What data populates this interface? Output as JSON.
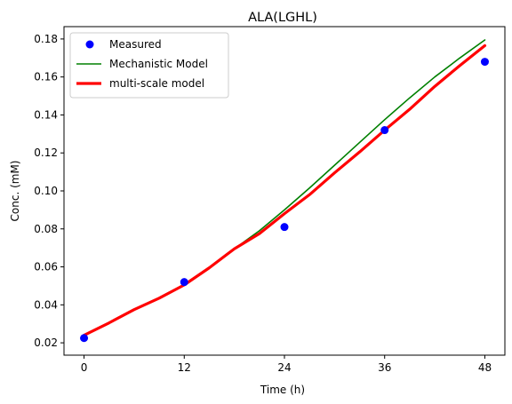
{
  "chart_data": {
    "type": "line",
    "title": "ALA(LGHL)",
    "xlabel": "Time (h)",
    "ylabel": "Conc. (mM)",
    "xlim": [
      -2.4,
      50.4
    ],
    "ylim": [
      0.0135,
      0.1865
    ],
    "xticks": [
      0,
      12,
      24,
      36,
      48
    ],
    "xtick_labels": [
      "0",
      "12",
      "24",
      "36",
      "48"
    ],
    "yticks": [
      0.02,
      0.04,
      0.06,
      0.08,
      0.1,
      0.12,
      0.14,
      0.16,
      0.18
    ],
    "ytick_labels": [
      "0.02",
      "0.04",
      "0.06",
      "0.08",
      "0.10",
      "0.12",
      "0.14",
      "0.16",
      "0.18"
    ],
    "grid": false,
    "legend_position": "top-left",
    "series": [
      {
        "name": "Measured",
        "kind": "marker",
        "color": "#0000ff",
        "x": [
          0,
          12,
          24,
          36,
          48
        ],
        "y": [
          0.0225,
          0.052,
          0.081,
          0.132,
          0.168
        ]
      },
      {
        "name": "Mechanistic Model",
        "kind": "line",
        "color": "#008000",
        "x": [
          0,
          3,
          6,
          9,
          12,
          15,
          18,
          21,
          24,
          27,
          30,
          33,
          36,
          39,
          42,
          45,
          48
        ],
        "y": [
          0.024,
          0.0305,
          0.0375,
          0.0435,
          0.0505,
          0.0595,
          0.0695,
          0.079,
          0.09,
          0.1015,
          0.1135,
          0.1255,
          0.1375,
          0.149,
          0.16,
          0.17,
          0.1795
        ]
      },
      {
        "name": "multi-scale model",
        "kind": "line",
        "color": "#ff0000",
        "x": [
          0,
          3,
          6,
          9,
          12,
          15,
          18,
          21,
          24,
          27,
          30,
          33,
          36,
          39,
          42,
          45,
          48
        ],
        "y": [
          0.024,
          0.0305,
          0.0375,
          0.0435,
          0.0505,
          0.0595,
          0.0695,
          0.0775,
          0.088,
          0.098,
          0.1095,
          0.1205,
          0.132,
          0.143,
          0.155,
          0.166,
          0.1765
        ]
      }
    ]
  }
}
